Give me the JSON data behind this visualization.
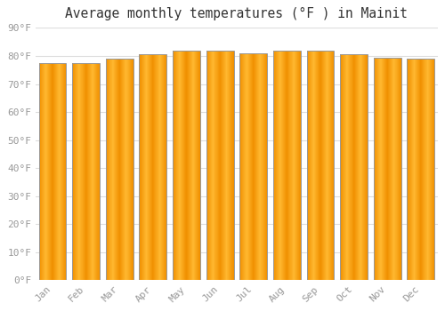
{
  "title": "Average monthly temperatures (°F ) in Mainit",
  "months": [
    "Jan",
    "Feb",
    "Mar",
    "Apr",
    "May",
    "Jun",
    "Jul",
    "Aug",
    "Sep",
    "Oct",
    "Nov",
    "Dec"
  ],
  "values": [
    77.5,
    77.5,
    79.0,
    80.5,
    82.0,
    82.0,
    81.0,
    82.0,
    82.0,
    80.5,
    79.5,
    79.0
  ],
  "bar_color_center": "#FFB830",
  "bar_color_edge": "#F09000",
  "bar_border_color": "#999999",
  "background_color": "#FFFFFF",
  "grid_color": "#DDDDDD",
  "ylim": [
    0,
    90
  ],
  "ytick_step": 10,
  "title_fontsize": 10.5,
  "tick_fontsize": 8,
  "tick_label_color": "#999999",
  "title_color": "#333333"
}
